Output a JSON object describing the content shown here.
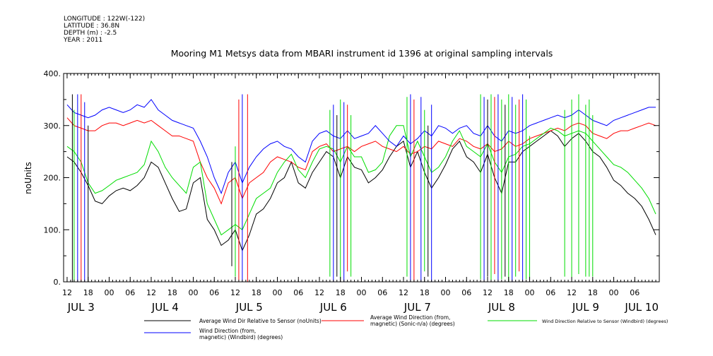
{
  "meta": {
    "longitude": "LONGITUDE : 122W(-122)",
    "latitude": "LATITUDE : 36.8N",
    "depth": "DEPTH (m) : -2.5",
    "year": "YEAR : 2011"
  },
  "chart_data": {
    "type": "line",
    "title": "Mooring M1 Metsys data from MBARI instrument id 1396 at original sampling intervals",
    "ylabel": "noUnits",
    "xlabel": "",
    "ylim": [
      0,
      400
    ],
    "yticks": [
      0,
      100,
      200,
      300,
      400
    ],
    "ytick_labels": [
      "0.",
      "100.",
      "200.",
      "300.",
      "400."
    ],
    "xlim_hours": [
      -1,
      169
    ],
    "hour_ticks": [
      {
        "h": 0,
        "label": "12"
      },
      {
        "h": 6,
        "label": "18"
      },
      {
        "h": 12,
        "label": "00"
      },
      {
        "h": 18,
        "label": "06"
      },
      {
        "h": 24,
        "label": "12"
      },
      {
        "h": 30,
        "label": "18"
      },
      {
        "h": 36,
        "label": "00"
      },
      {
        "h": 42,
        "label": "06"
      },
      {
        "h": 48,
        "label": "12"
      },
      {
        "h": 54,
        "label": "18"
      },
      {
        "h": 60,
        "label": "00"
      },
      {
        "h": 66,
        "label": "06"
      },
      {
        "h": 72,
        "label": "12"
      },
      {
        "h": 78,
        "label": "18"
      },
      {
        "h": 84,
        "label": "00"
      },
      {
        "h": 90,
        "label": "06"
      },
      {
        "h": 96,
        "label": "12"
      },
      {
        "h": 102,
        "label": "18"
      },
      {
        "h": 108,
        "label": "00"
      },
      {
        "h": 114,
        "label": "06"
      },
      {
        "h": 120,
        "label": "12"
      },
      {
        "h": 126,
        "label": "18"
      },
      {
        "h": 132,
        "label": "00"
      },
      {
        "h": 138,
        "label": "06"
      },
      {
        "h": 144,
        "label": "12"
      },
      {
        "h": 150,
        "label": "18"
      },
      {
        "h": 156,
        "label": "00"
      },
      {
        "h": 162,
        "label": "06"
      }
    ],
    "date_labels": [
      {
        "h": 4,
        "label": "JUL  3"
      },
      {
        "h": 28,
        "label": "JUL  4"
      },
      {
        "h": 52,
        "label": "JUL  5"
      },
      {
        "h": 76,
        "label": "JUL  6"
      },
      {
        "h": 100,
        "label": "JUL  7"
      },
      {
        "h": 124,
        "label": "JUL  8"
      },
      {
        "h": 148,
        "label": "JUL  9"
      },
      {
        "h": 164,
        "label": "JUL 10"
      }
    ],
    "grid": false,
    "legend_position": "bottom",
    "series": [
      {
        "name": "Average Wind Dir Relative to Sensor (noUnits)",
        "color": "#000000",
        "x": [
          0,
          2,
          4,
          6,
          8,
          10,
          12,
          14,
          16,
          18,
          20,
          22,
          24,
          26,
          28,
          30,
          32,
          34,
          36,
          38,
          40,
          42,
          44,
          46,
          48,
          50,
          52,
          54,
          56,
          58,
          60,
          62,
          64,
          66,
          68,
          70,
          72,
          74,
          76,
          78,
          80,
          82,
          84,
          86,
          88,
          90,
          92,
          94,
          96,
          98,
          100,
          102,
          104,
          106,
          108,
          110,
          112,
          114,
          116,
          118,
          120,
          122,
          124,
          126,
          128,
          130,
          132,
          134,
          136,
          138,
          140,
          142,
          144,
          146,
          148,
          150,
          152,
          154,
          156,
          158,
          160,
          162,
          164,
          166,
          168
        ],
        "y": [
          240,
          230,
          210,
          185,
          155,
          150,
          165,
          175,
          180,
          175,
          185,
          200,
          230,
          220,
          190,
          160,
          135,
          140,
          190,
          200,
          120,
          100,
          70,
          80,
          100,
          60,
          90,
          130,
          140,
          160,
          190,
          200,
          230,
          190,
          180,
          210,
          230,
          250,
          240,
          200,
          240,
          220,
          215,
          190,
          200,
          215,
          240,
          260,
          270,
          220,
          250,
          210,
          180,
          200,
          225,
          255,
          270,
          240,
          230,
          210,
          245,
          200,
          170,
          230,
          230,
          250,
          260,
          270,
          280,
          290,
          280,
          260,
          275,
          285,
          270,
          250,
          240,
          220,
          195,
          185,
          170,
          160,
          145,
          120,
          90
        ]
      },
      {
        "name": "Average Wind Direction (from, magnetic) (Sonic-n/a) (degrees)",
        "color": "#ff0000",
        "x": [
          0,
          2,
          4,
          6,
          8,
          10,
          12,
          14,
          16,
          18,
          20,
          22,
          24,
          26,
          28,
          30,
          32,
          34,
          36,
          38,
          40,
          42,
          44,
          46,
          48,
          50,
          52,
          54,
          56,
          58,
          60,
          62,
          64,
          66,
          68,
          70,
          72,
          74,
          76,
          78,
          80,
          82,
          84,
          86,
          88,
          90,
          92,
          94,
          96,
          98,
          100,
          102,
          104,
          106,
          108,
          110,
          112,
          114,
          116,
          118,
          120,
          122,
          124,
          126,
          128,
          130,
          132,
          134,
          136,
          138,
          140,
          142,
          144,
          146,
          148,
          150,
          152,
          154,
          156,
          158,
          160,
          162,
          164,
          166,
          168
        ],
        "y": [
          315,
          300,
          295,
          290,
          290,
          300,
          305,
          305,
          300,
          305,
          310,
          305,
          310,
          300,
          290,
          280,
          280,
          275,
          270,
          230,
          200,
          180,
          150,
          190,
          200,
          160,
          190,
          200,
          210,
          230,
          240,
          235,
          230,
          220,
          215,
          250,
          260,
          265,
          250,
          255,
          260,
          250,
          260,
          265,
          270,
          260,
          255,
          250,
          260,
          245,
          250,
          260,
          255,
          270,
          265,
          260,
          275,
          270,
          260,
          255,
          265,
          250,
          255,
          270,
          260,
          265,
          275,
          280,
          285,
          290,
          295,
          290,
          300,
          305,
          300,
          285,
          280,
          275,
          285,
          290,
          290,
          295,
          300,
          305,
          300
        ]
      },
      {
        "name": "Wind Direction Relative to Sensor (Windbird) (degrees)",
        "color": "#00dd00",
        "x": [
          0,
          2,
          4,
          6,
          8,
          10,
          12,
          14,
          16,
          18,
          20,
          22,
          24,
          26,
          28,
          30,
          32,
          34,
          36,
          38,
          40,
          42,
          44,
          46,
          48,
          50,
          52,
          54,
          56,
          58,
          60,
          62,
          64,
          66,
          68,
          70,
          72,
          74,
          76,
          78,
          80,
          82,
          84,
          86,
          88,
          90,
          92,
          94,
          96,
          98,
          100,
          102,
          104,
          106,
          108,
          110,
          112,
          114,
          116,
          118,
          120,
          122,
          124,
          126,
          128,
          130,
          132,
          134,
          136,
          138,
          140,
          142,
          144,
          146,
          148,
          150,
          152,
          154,
          156,
          158,
          160,
          162,
          164,
          166,
          168
        ],
        "y": [
          260,
          250,
          230,
          190,
          170,
          175,
          185,
          195,
          200,
          205,
          210,
          225,
          270,
          250,
          220,
          200,
          185,
          170,
          220,
          230,
          150,
          120,
          90,
          100,
          110,
          100,
          130,
          160,
          170,
          180,
          210,
          230,
          245,
          215,
          200,
          230,
          255,
          260,
          255,
          230,
          260,
          240,
          240,
          210,
          215,
          230,
          280,
          300,
          300,
          240,
          270,
          240,
          210,
          220,
          240,
          270,
          290,
          260,
          250,
          240,
          265,
          230,
          210,
          240,
          245,
          260,
          265,
          275,
          285,
          295,
          290,
          280,
          285,
          290,
          285,
          270,
          255,
          240,
          225,
          220,
          210,
          195,
          180,
          160,
          130
        ]
      },
      {
        "name": "Wind Direction (from, magnetic) (Windbird) (degrees)",
        "color": "#0000ff",
        "x": [
          0,
          2,
          4,
          6,
          8,
          10,
          12,
          14,
          16,
          18,
          20,
          22,
          24,
          26,
          28,
          30,
          32,
          34,
          36,
          38,
          40,
          42,
          44,
          46,
          48,
          50,
          52,
          54,
          56,
          58,
          60,
          62,
          64,
          66,
          68,
          70,
          72,
          74,
          76,
          78,
          80,
          82,
          84,
          86,
          88,
          90,
          92,
          94,
          96,
          98,
          100,
          102,
          104,
          106,
          108,
          110,
          112,
          114,
          116,
          118,
          120,
          122,
          124,
          126,
          128,
          130,
          132,
          134,
          136,
          138,
          140,
          142,
          144,
          146,
          148,
          150,
          152,
          154,
          156,
          158,
          160,
          162,
          164,
          166,
          168
        ],
        "y": [
          340,
          325,
          320,
          315,
          320,
          330,
          335,
          330,
          325,
          330,
          340,
          335,
          350,
          330,
          320,
          310,
          305,
          300,
          295,
          270,
          240,
          200,
          170,
          210,
          230,
          190,
          220,
          240,
          255,
          265,
          270,
          260,
          255,
          240,
          230,
          270,
          285,
          290,
          280,
          275,
          290,
          275,
          280,
          285,
          300,
          285,
          270,
          260,
          280,
          265,
          275,
          290,
          280,
          300,
          295,
          285,
          295,
          300,
          285,
          280,
          300,
          280,
          270,
          290,
          285,
          290,
          300,
          305,
          310,
          315,
          320,
          315,
          320,
          330,
          320,
          310,
          305,
          300,
          310,
          315,
          320,
          325,
          330,
          335,
          335
        ]
      }
    ],
    "spikes": [
      {
        "series": 0,
        "h": 1.5,
        "from": 0,
        "to": 360
      },
      {
        "series": 2,
        "h": 2,
        "from": 0,
        "to": 330
      },
      {
        "series": 3,
        "h": 3,
        "from": 0,
        "to": 360
      },
      {
        "series": 1,
        "h": 4,
        "from": 0,
        "to": 360
      },
      {
        "series": 3,
        "h": 5,
        "from": 0,
        "to": 345
      },
      {
        "series": 0,
        "h": 6,
        "from": 0,
        "to": 300
      },
      {
        "series": 1,
        "h": 49,
        "from": 0,
        "to": 350
      },
      {
        "series": 3,
        "h": 50,
        "from": 0,
        "to": 360
      },
      {
        "series": 1,
        "h": 51.5,
        "from": 0,
        "to": 360
      },
      {
        "series": 2,
        "h": 48,
        "from": 10,
        "to": 260
      },
      {
        "series": 0,
        "h": 47,
        "from": 30,
        "to": 230
      },
      {
        "series": 2,
        "h": 75,
        "from": 10,
        "to": 330
      },
      {
        "series": 3,
        "h": 76,
        "from": 0,
        "to": 340
      },
      {
        "series": 0,
        "h": 77,
        "from": 10,
        "to": 320
      },
      {
        "series": 2,
        "h": 78,
        "from": 5,
        "to": 350
      },
      {
        "series": 3,
        "h": 79,
        "from": 0,
        "to": 345
      },
      {
        "series": 1,
        "h": 80,
        "from": 20,
        "to": 340
      },
      {
        "series": 2,
        "h": 81,
        "from": 10,
        "to": 320
      },
      {
        "series": 2,
        "h": 97,
        "from": 10,
        "to": 355
      },
      {
        "series": 3,
        "h": 98,
        "from": 0,
        "to": 360
      },
      {
        "series": 1,
        "h": 99,
        "from": 0,
        "to": 350
      },
      {
        "series": 3,
        "h": 101,
        "from": 0,
        "to": 355
      },
      {
        "series": 2,
        "h": 102,
        "from": 20,
        "to": 330
      },
      {
        "series": 0,
        "h": 103,
        "from": 10,
        "to": 300
      },
      {
        "series": 3,
        "h": 104,
        "from": 0,
        "to": 340
      },
      {
        "series": 2,
        "h": 118,
        "from": 5,
        "to": 360
      },
      {
        "series": 3,
        "h": 119,
        "from": 0,
        "to": 355
      },
      {
        "series": 0,
        "h": 120,
        "from": 10,
        "to": 350
      },
      {
        "series": 2,
        "h": 121,
        "from": 0,
        "to": 360
      },
      {
        "series": 1,
        "h": 122,
        "from": 15,
        "to": 355
      },
      {
        "series": 3,
        "h": 123,
        "from": 0,
        "to": 360
      },
      {
        "series": 2,
        "h": 124,
        "from": 5,
        "to": 350
      },
      {
        "series": 0,
        "h": 125,
        "from": 10,
        "to": 340
      },
      {
        "series": 2,
        "h": 126,
        "from": 0,
        "to": 360
      },
      {
        "series": 3,
        "h": 127,
        "from": 0,
        "to": 355
      },
      {
        "series": 2,
        "h": 128,
        "from": 10,
        "to": 340
      },
      {
        "series": 1,
        "h": 129,
        "from": 20,
        "to": 350
      },
      {
        "series": 3,
        "h": 130,
        "from": 0,
        "to": 360
      },
      {
        "series": 2,
        "h": 131,
        "from": 5,
        "to": 350
      },
      {
        "series": 2,
        "h": 132,
        "from": 5,
        "to": 280
      },
      {
        "series": 2,
        "h": 142,
        "from": 10,
        "to": 330
      },
      {
        "series": 2,
        "h": 144,
        "from": 5,
        "to": 350
      },
      {
        "series": 2,
        "h": 146,
        "from": 15,
        "to": 360
      },
      {
        "series": 2,
        "h": 148,
        "from": 10,
        "to": 340
      },
      {
        "series": 2,
        "h": 149,
        "from": 10,
        "to": 350
      },
      {
        "series": 2,
        "h": 150,
        "from": 10,
        "to": 320
      }
    ]
  }
}
